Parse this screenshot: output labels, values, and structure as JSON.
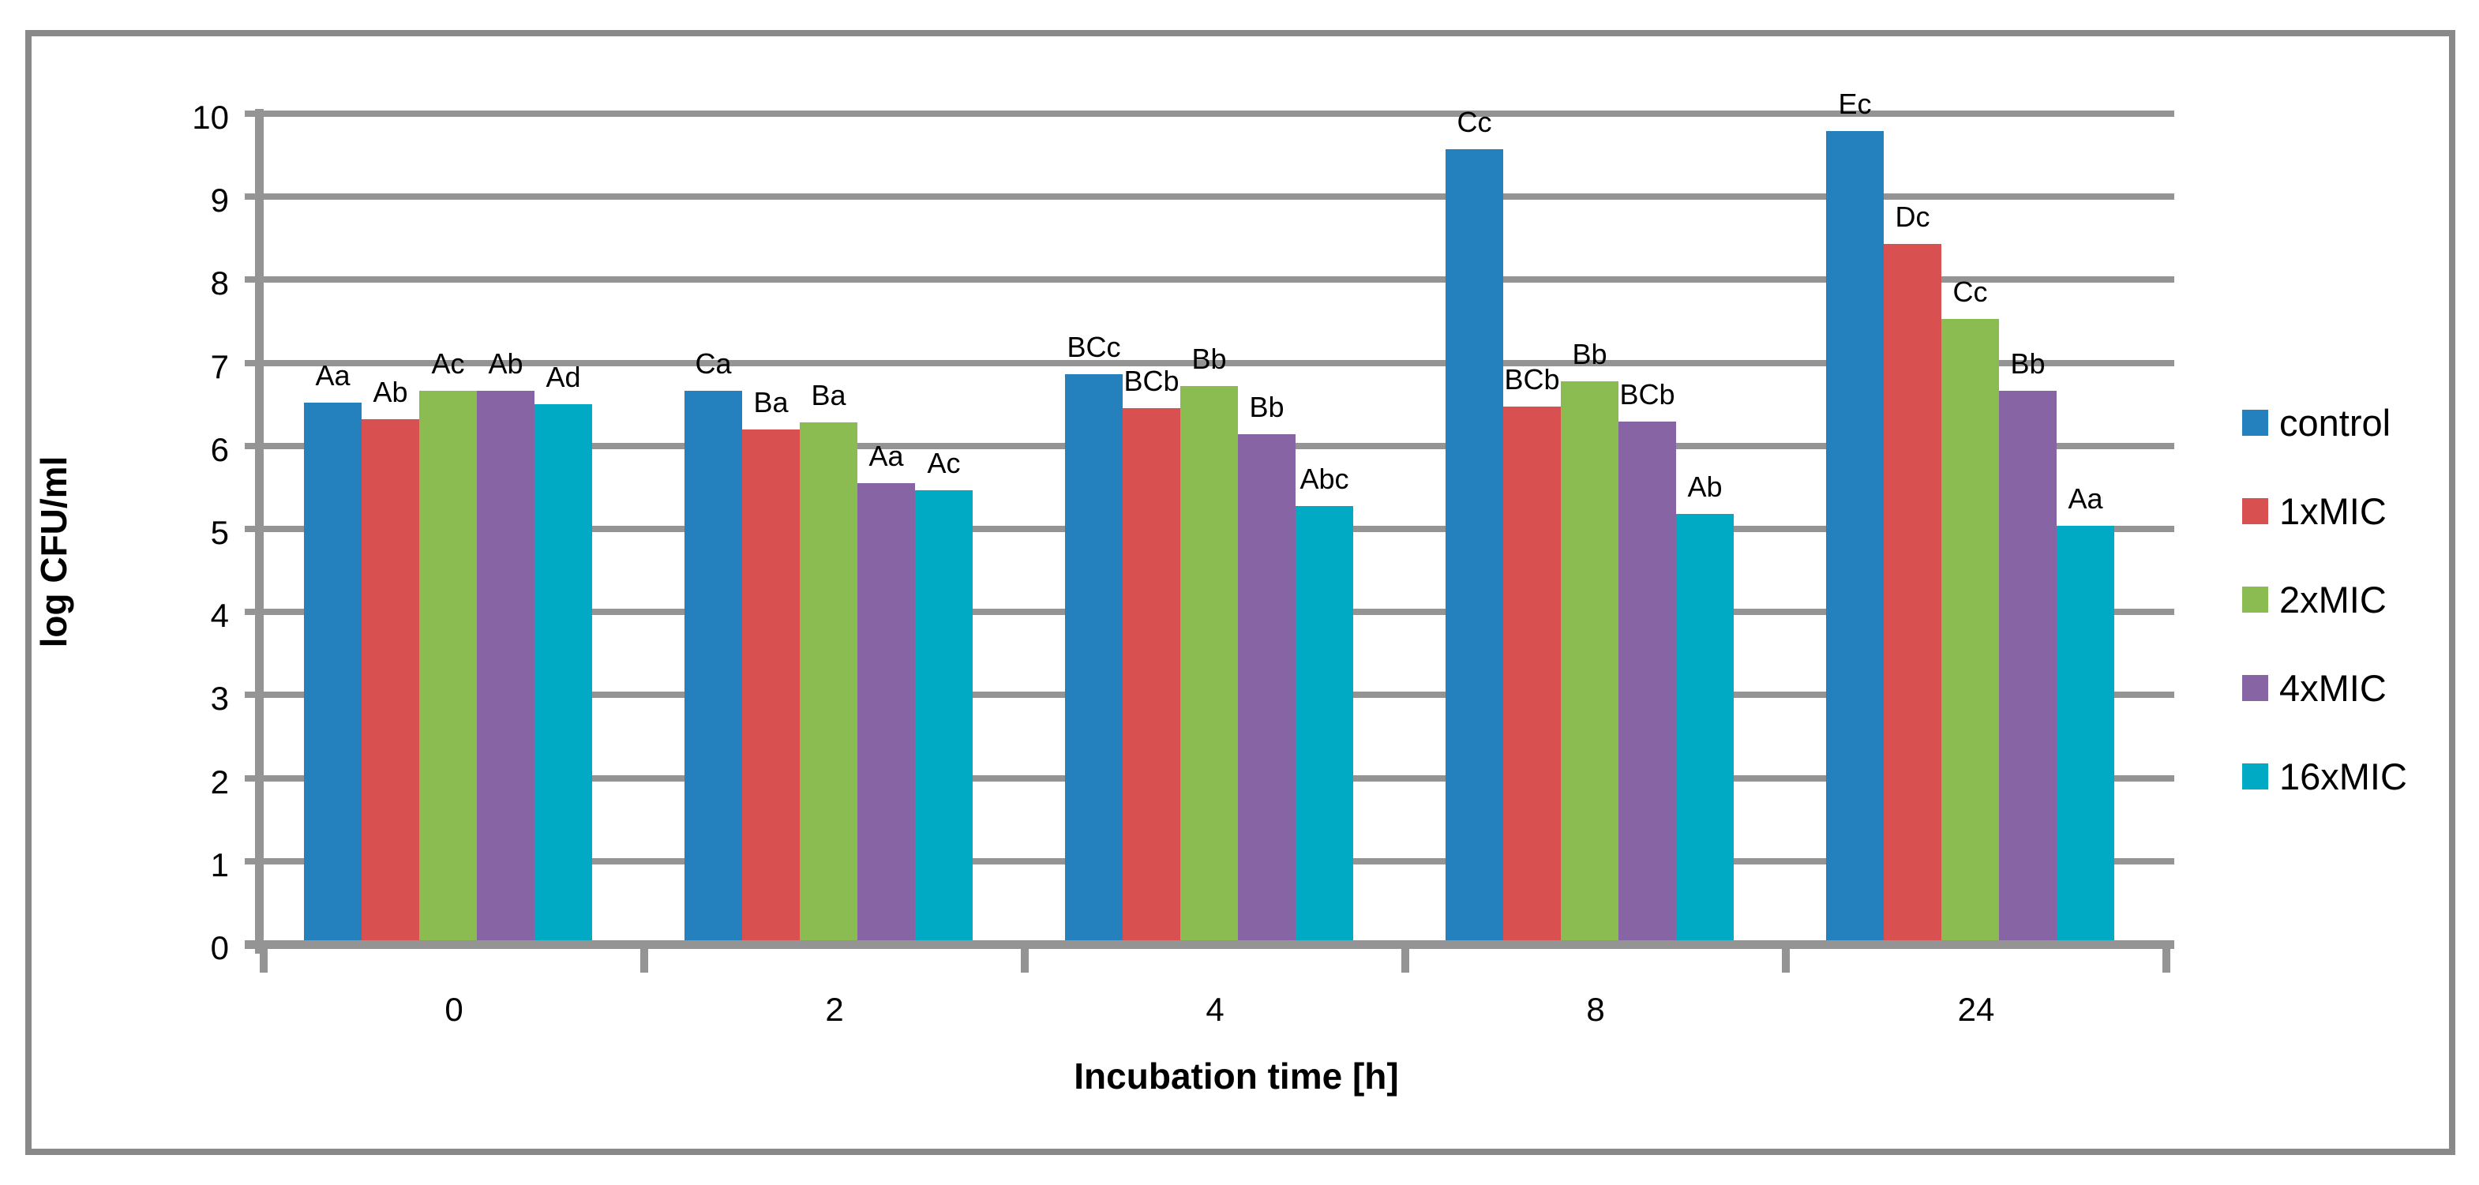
{
  "chart_data": {
    "type": "bar",
    "title": "",
    "xlabel": "Incubation time [h]",
    "ylabel": "log CFU/ml",
    "ylim": [
      0,
      10
    ],
    "yticks": [
      0,
      1,
      2,
      3,
      4,
      5,
      6,
      7,
      8,
      9,
      10
    ],
    "categories": [
      "0",
      "2",
      "4",
      "8",
      "24"
    ],
    "series": [
      {
        "name": "control",
        "color": "#2580BE",
        "values": [
          6.52,
          6.66,
          6.86,
          9.57,
          9.79
        ],
        "bar_labels": [
          "Aa",
          "Ca",
          "BCc",
          "Cc",
          "Ec"
        ]
      },
      {
        "name": "1xMIC",
        "color": "#D85050",
        "values": [
          6.32,
          6.2,
          6.45,
          6.47,
          8.43
        ],
        "bar_labels": [
          "Ab",
          "Ba",
          "BCb",
          "BCb",
          "Dc"
        ]
      },
      {
        "name": "2xMIC",
        "color": "#8BBC51",
        "values": [
          6.66,
          6.28,
          6.72,
          6.78,
          7.53
        ],
        "bar_labels": [
          "Ac",
          "Ba",
          "Bb",
          "Bb",
          "Cc"
        ]
      },
      {
        "name": "4xMIC",
        "color": "#8765A5",
        "values": [
          6.66,
          5.55,
          6.14,
          6.29,
          6.66
        ],
        "bar_labels": [
          "Ab",
          "Aa",
          "Bb",
          "BCb",
          "Bb"
        ]
      },
      {
        "name": "16xMIC",
        "color": "#00A9C4",
        "values": [
          6.5,
          5.47,
          5.28,
          5.18,
          5.04
        ],
        "bar_labels": [
          "Ad",
          "Ac",
          "Abc",
          "Ab",
          "Aa"
        ]
      }
    ],
    "legend_position": "right",
    "grid": true,
    "grid_color": "#949494",
    "axis_color": "#949494",
    "border_color": "#898989",
    "background_color": "#ffffff",
    "text_color": "#000000"
  }
}
